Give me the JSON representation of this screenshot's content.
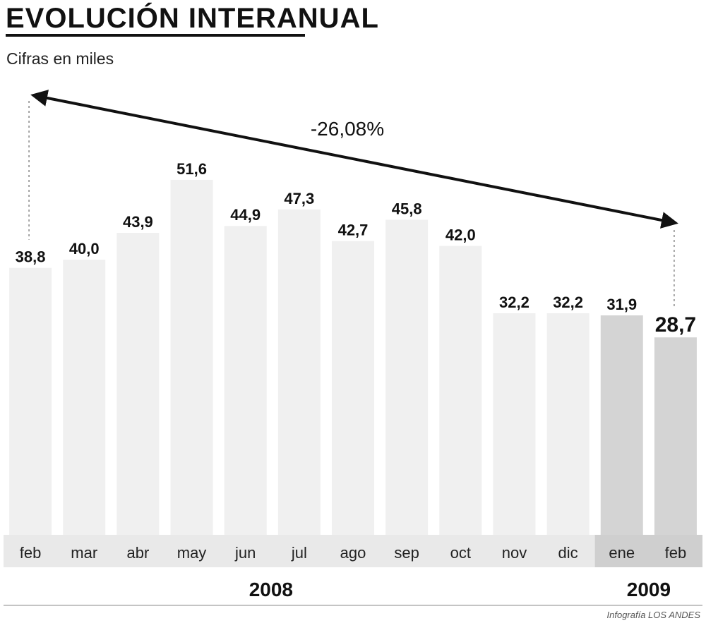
{
  "title": "EVOLUCIÓN INTERANUAL",
  "subtitle": "Cifras en miles",
  "credit": "Infografía LOS ANDES",
  "annotation": "-26,08%",
  "colors": {
    "bar_2008": "#f0f0f0",
    "bar_2009": "#d4d4d4",
    "axis_band": "#e9e9e9",
    "axis_band_2009": "#cfcfcf",
    "text": "#111111"
  },
  "chart_data": {
    "type": "bar",
    "categories": [
      "feb",
      "mar",
      "abr",
      "may",
      "jun",
      "jul",
      "ago",
      "sep",
      "oct",
      "nov",
      "dic",
      "ene",
      "feb"
    ],
    "values": [
      38.8,
      40.0,
      43.9,
      51.6,
      44.9,
      47.3,
      42.7,
      45.8,
      42.0,
      32.2,
      32.2,
      31.9,
      28.7
    ],
    "value_labels": [
      "38,8",
      "40,0",
      "43,9",
      "51,6",
      "44,9",
      "47,3",
      "42,7",
      "45,8",
      "42,0",
      "32,2",
      "32,2",
      "31,9",
      "28,7"
    ],
    "years": [
      {
        "label": "2008",
        "from_index": 0,
        "to_index": 10
      },
      {
        "label": "2009",
        "from_index": 11,
        "to_index": 12
      }
    ],
    "ylim": [
      0,
      60
    ],
    "grid": false,
    "change_annotation": {
      "label": "-26,08%",
      "from_index": 0,
      "to_index": 12
    }
  }
}
